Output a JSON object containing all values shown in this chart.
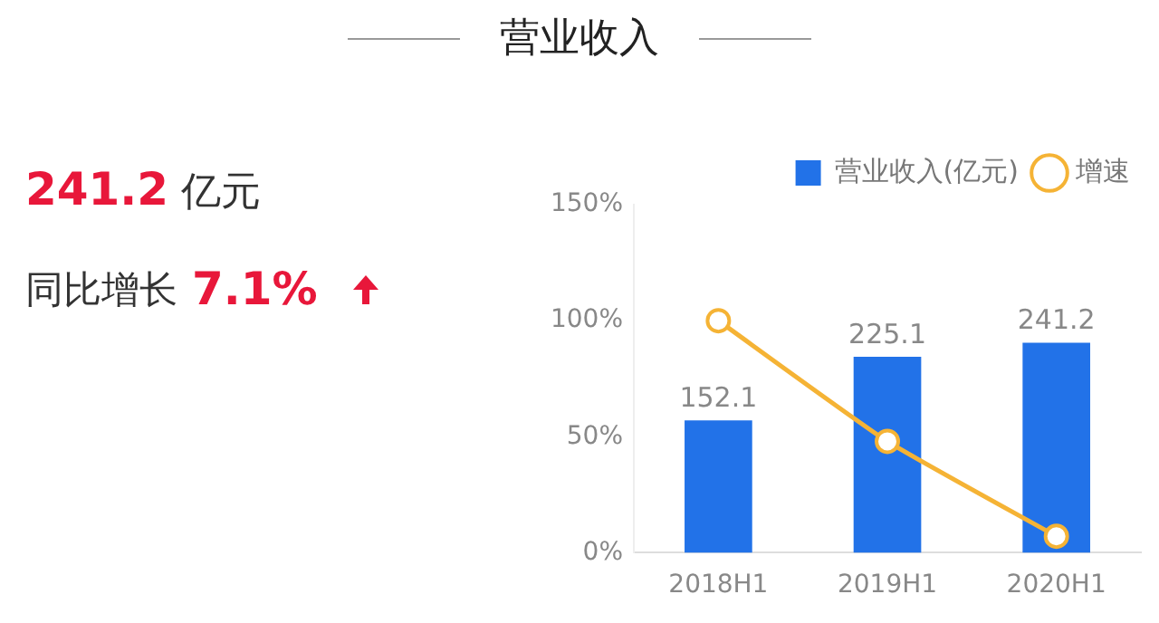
{
  "chart_data": {
    "type": "bar",
    "title": "营业收入",
    "categories": [
      "2018H1",
      "2019H1",
      "2020H1"
    ],
    "series": [
      {
        "name": "营业收入(亿元)",
        "axis": "y2",
        "color": "#2272e8",
        "values": [
          152.1,
          225.1,
          241.2
        ],
        "value_labels": [
          "152.1",
          "225.1",
          "241.2"
        ]
      },
      {
        "name": "增速",
        "type": "line",
        "color": "#f5b335",
        "values": [
          100,
          48,
          7.1
        ]
      }
    ],
    "ylim": [
      0,
      150
    ],
    "yticks": [
      {
        "value": 0,
        "label": "0%"
      },
      {
        "value": 50,
        "label": "50%"
      },
      {
        "value": 100,
        "label": "100%"
      },
      {
        "value": 150,
        "label": "150%"
      }
    ],
    "y2lim": [
      0,
      400
    ],
    "marker": "circle",
    "line_style": "solid",
    "legend": "top right",
    "grid": false,
    "annotations": [
      "241.2",
      "亿元",
      "同比增长",
      "7.1%"
    ]
  }
}
